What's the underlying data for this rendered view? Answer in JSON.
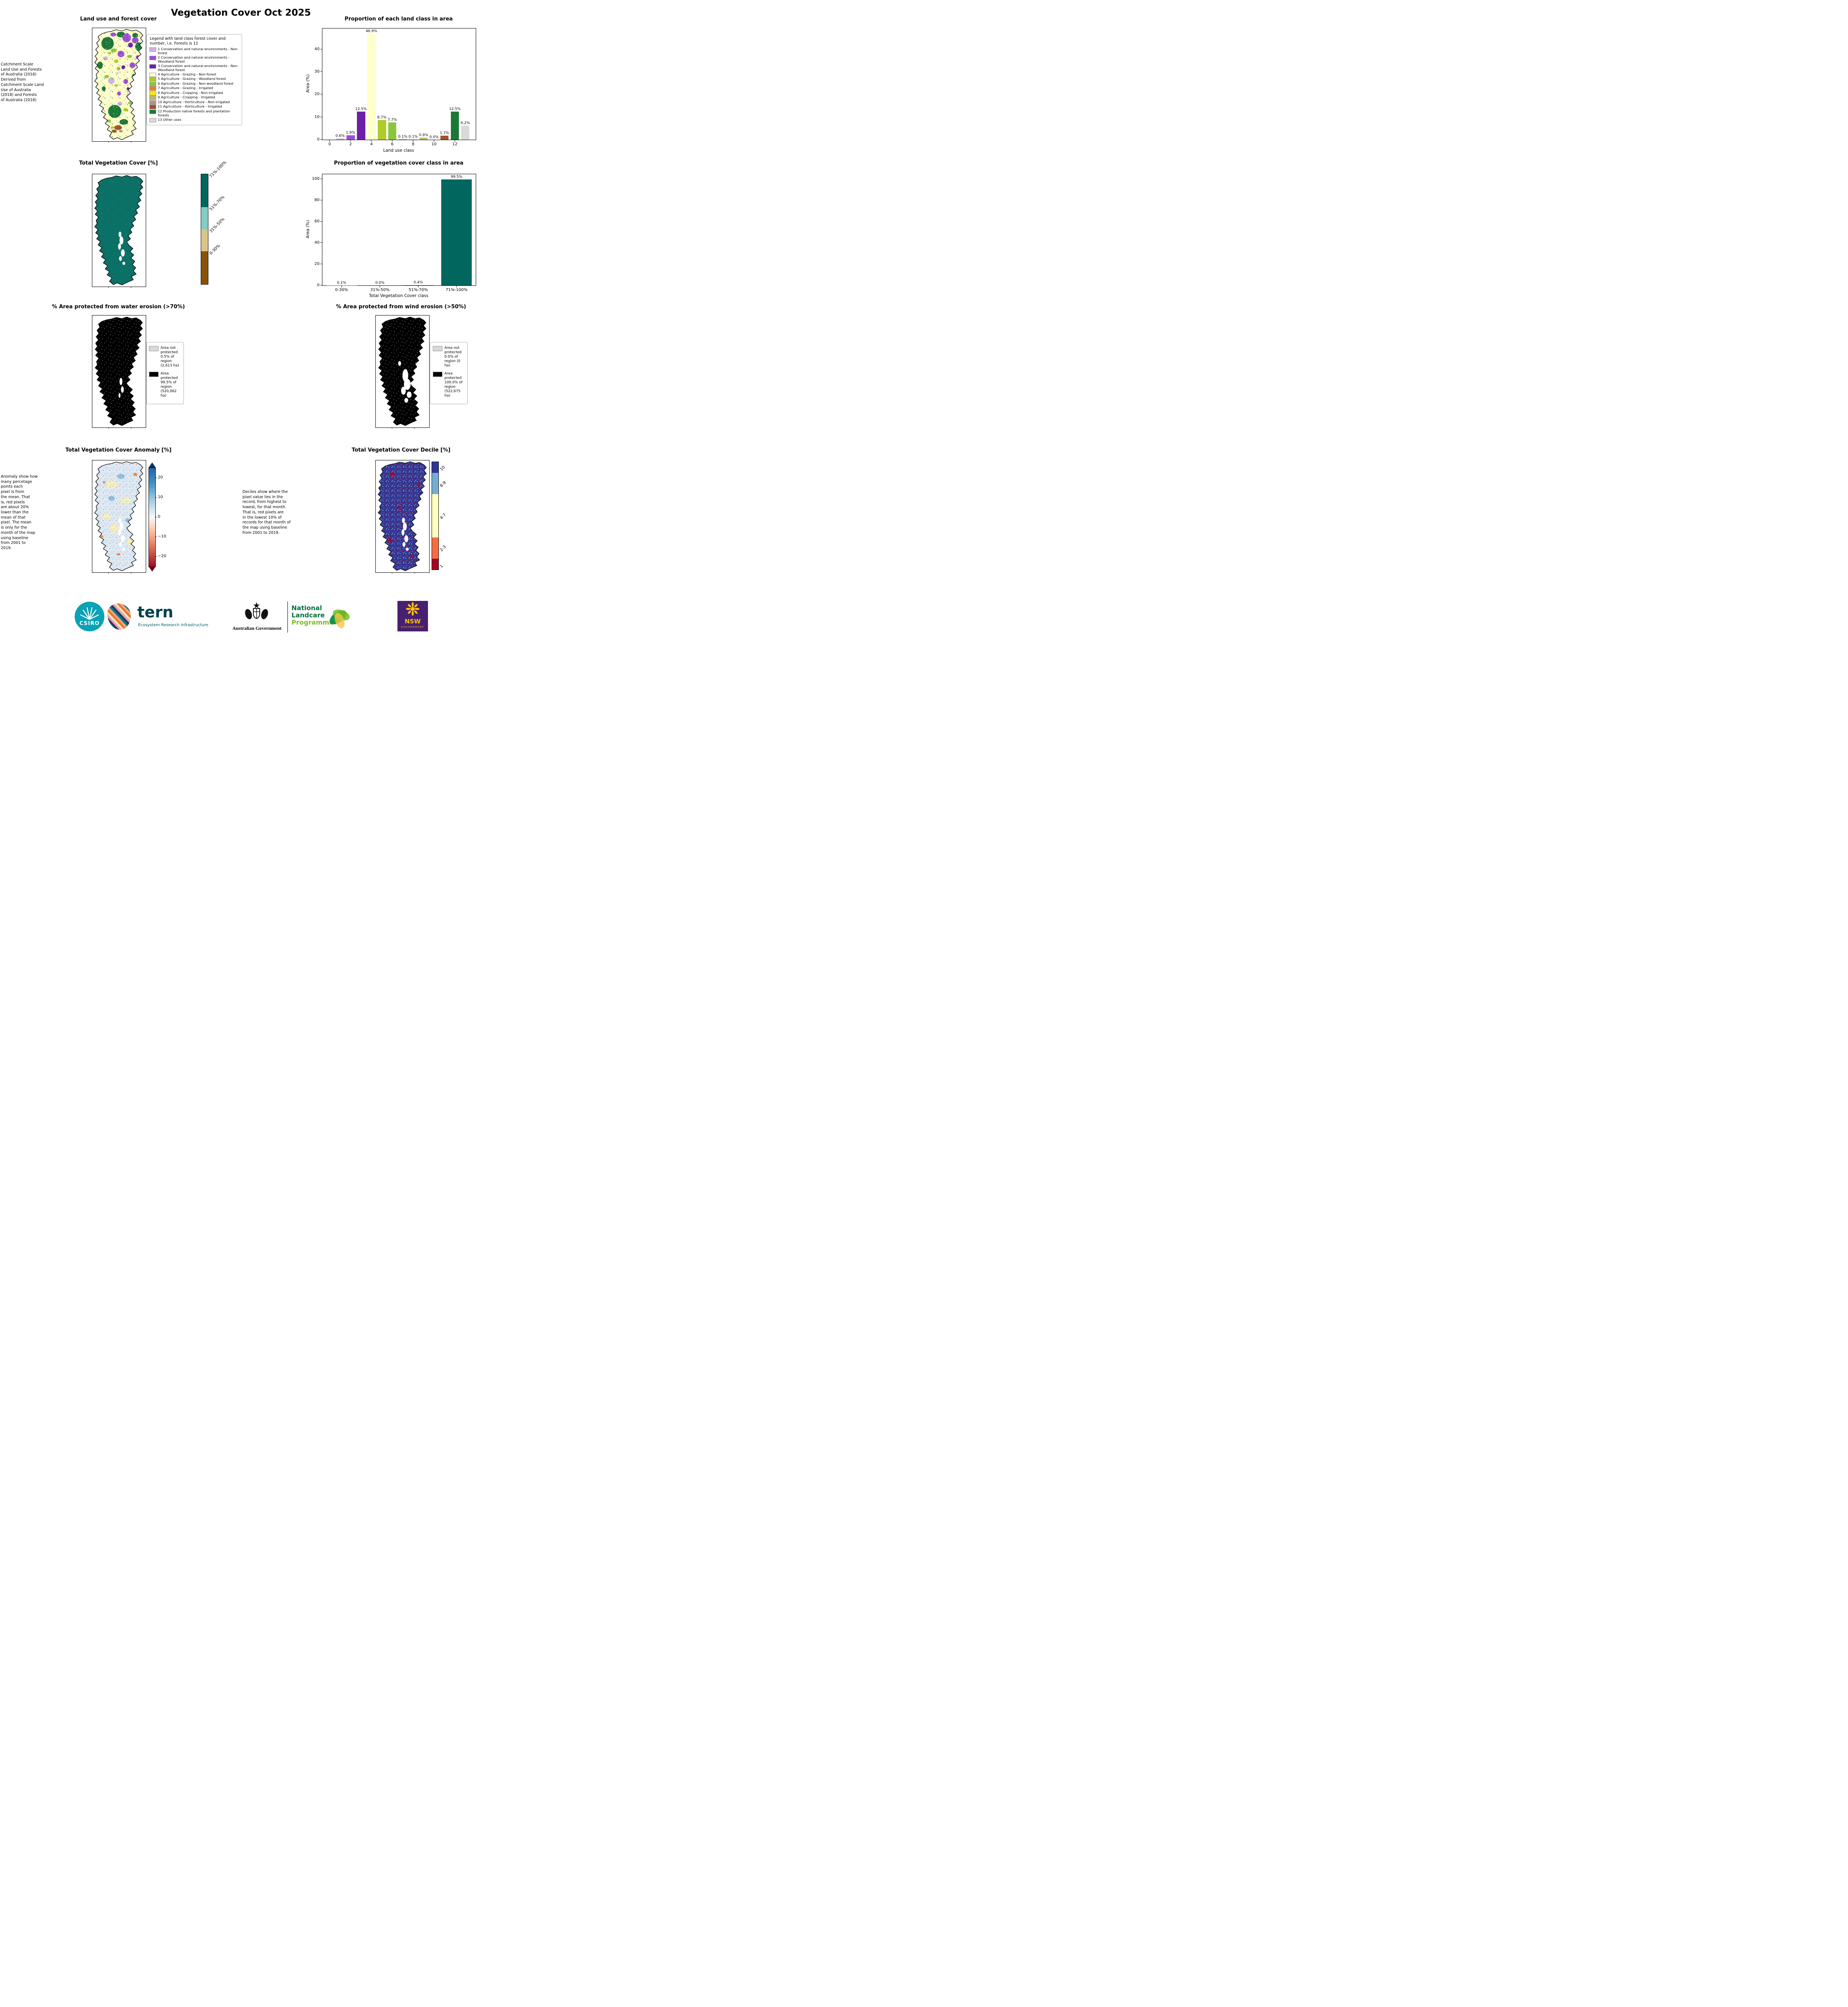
{
  "page_title": "Vegetation Cover Oct 2025",
  "landuse": {
    "title": "Land use and forest cover",
    "side_note": " Catchment Scale\nLand Use and Forests\nof Australia (2018)\nDerived from\nCatchment Scale Land\nUse of Australia\n(2018) and Forests\nof Australia (2018)",
    "legend_title": "Legend with land class forest cover and number, i.e. Forests is 12",
    "legend_items": [
      {
        "label": "1 Conservation and natural environments - Non-forest",
        "color": "#CDB4E2"
      },
      {
        "label": "2 Conservation and natural environments - Woodland forest",
        "color": "#9C4FD6"
      },
      {
        "label": "3 Conservation and natural environments - Non-Woodland forest",
        "color": "#6E1FA8"
      },
      {
        "label": "4 Agriculture - Grazing - Non-forest",
        "color": "#FFFFCC"
      },
      {
        "label": "5 Agriculture - Grazing - Woodland forest",
        "color": "#AFCB2A"
      },
      {
        "label": "6 Agriculture - Grazing - Non-woodland forest",
        "color": "#8CC63F"
      },
      {
        "label": "7 Agriculture - Grazing - Irrigated",
        "color": "#F97B0B"
      },
      {
        "label": "8 Agriculture - Cropping - Non-irrigated",
        "color": "#F7E913"
      },
      {
        "label": "9 Agriculture - Cropping - Irrigated",
        "color": "#BDB76B"
      },
      {
        "label": "10 Agriculture - Horticulture - Non-irrigated",
        "color": "#BC8F8F"
      },
      {
        "label": "11 Agriculture - Horticulture - Irrigated",
        "color": "#A0522D"
      },
      {
        "label": "12 Production native forests and plantation forests",
        "color": "#1B7837"
      },
      {
        "label": "13 Other uses",
        "color": "#D9D9D9"
      }
    ]
  },
  "vegcover": {
    "title": "Total Vegetation Cover [%]",
    "map_color": "#0B7065",
    "colorbar": [
      {
        "label": "71%-100%",
        "color": "#01665E",
        "span": 30
      },
      {
        "label": "51%-70%",
        "color": "#80CDC1",
        "span": 20
      },
      {
        "label": "31%-50%",
        "color": "#D8C389",
        "span": 20
      },
      {
        "label": "0-30%",
        "color": "#8C5109",
        "span": 30
      }
    ]
  },
  "water": {
    "title": "% Area protected from water erosion (>70%)",
    "legend": [
      {
        "color": "#D9D9D9",
        "text": "Area not\nprotected\n0.5% of\nregion\n(2,613 ha)"
      },
      {
        "color": "#000000",
        "text": "Area\nprotected\n99.5% of\nregion\n(520,062\nha)"
      }
    ]
  },
  "wind": {
    "title": "% Area protected from wind erosion (>50%)",
    "legend": [
      {
        "color": "#D9D9D9",
        "text": "Area not\nprotected\n0.0% of\nregion (0\nha)"
      },
      {
        "color": "#000000",
        "text": "Area\nprotected\n100.0% of\nregion\n(522,675\nha)"
      }
    ]
  },
  "anomaly": {
    "title": "Total Vegetation Cover Anomaly [%]",
    "note": "Anomaly show how\nmany percetage\npoints each\npixel is from\nthe mean. That\nis, red pixels\nare about 20%\nlower than the\nmean of that\npixel. The mean\nis only for the\nmonth of the map\nusing baseline\nfrom 2001 to\n2019.",
    "cbar_ticks": [
      {
        "label": "20",
        "pos": 10
      },
      {
        "label": "10",
        "pos": 30
      },
      {
        "label": "0",
        "pos": 50
      },
      {
        "label": "−10",
        "pos": 70
      },
      {
        "label": "−20",
        "pos": 90
      }
    ]
  },
  "decile": {
    "title": "Total Vegetation Cover Decile [%]",
    "note": "Deciles show where the\npixel value lies in the\nrecord, from highest to\nlowest, for that month.\nThat is, red pixels are\nin the lowest 10% of\nrecords for that month of\nthe map using baseline\nfrom 2001 to 2019.",
    "colorbar": [
      {
        "label": "10",
        "color": "#313695",
        "span": 10
      },
      {
        "label": "8-9",
        "color": "#74ADD1",
        "span": 20
      },
      {
        "label": "4-7",
        "color": "#FFFFBF",
        "span": 40
      },
      {
        "label": "2-3",
        "color": "#F46D43",
        "span": 20
      },
      {
        "label": "1",
        "color": "#A50026",
        "span": 10
      }
    ]
  },
  "chart_data": [
    {
      "type": "bar",
      "title": "Proportion of each land class in area",
      "xlabel": "Land use class",
      "ylabel": "Area (%)",
      "x": [
        1,
        2,
        3,
        4,
        5,
        6,
        7,
        8,
        9,
        10,
        11,
        12,
        13
      ],
      "values": [
        0.6,
        1.9,
        12.5,
        46.9,
        8.7,
        7.7,
        0.1,
        0.1,
        0.9,
        0.0,
        1.7,
        12.5,
        6.2
      ],
      "bar_labels": [
        "0.6%",
        "1.9%",
        "12.5%",
        "46.9%",
        "8.7%",
        "7.7%",
        "0.1%",
        "0.1%",
        "0.9%",
        "0.0%",
        "1.7%",
        "12.5%",
        "6.2%"
      ],
      "colors": [
        "#CDB4E2",
        "#9C4FD6",
        "#6E1FA8",
        "#FFFFCC",
        "#AFCB2A",
        "#8CC63F",
        "#F97B0B",
        "#F7E913",
        "#BDB76B",
        "#BC8F8F",
        "#A0522D",
        "#1B7837",
        "#D9D9D9"
      ],
      "xlim": [
        -0.7,
        14.0
      ],
      "ylim": [
        0,
        49.2
      ],
      "xticks": [
        0,
        2,
        4,
        6,
        8,
        10,
        12
      ],
      "yticks": [
        0,
        10,
        20,
        30,
        40
      ]
    },
    {
      "type": "bar",
      "title": "Proportion of vegetation cover class in area",
      "xlabel": "Total Vegetation Cover class",
      "ylabel": "Area (%)",
      "categories": [
        "0-30%",
        "31%-50%",
        "51%-70%",
        "71%-100%"
      ],
      "values": [
        0.1,
        0.0,
        0.4,
        99.5
      ],
      "bar_labels": [
        "0.1%",
        "0.0%",
        "0.4%",
        "99.5%"
      ],
      "colors": [
        "#8C5109",
        "#D8C389",
        "#80CDC1",
        "#01665E"
      ],
      "ylim": [
        0,
        104.5
      ],
      "yticks": [
        0,
        20,
        40,
        60,
        80,
        100
      ]
    }
  ],
  "footer": {
    "csiro_label": "CSIRO",
    "tern_label": "tern",
    "tern_sub": "Ecosystem Research Infrastructure",
    "ausgov_label": "Australian Government",
    "landcare_line1": "National",
    "landcare_line2": "Landcare",
    "landcare_line3": "Programme",
    "nsw_label": "NSW",
    "nsw_sub": "GOVERNMENT"
  }
}
